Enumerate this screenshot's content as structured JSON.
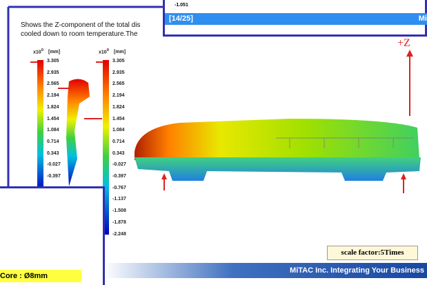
{
  "slide_text": [
    "Shows the Z-component of the total dis",
    "cooled down to room temperature.The"
  ],
  "popup_top": {
    "value": "-1.051",
    "page": "[14/25]",
    "brand": "Mi"
  },
  "legends": [
    {
      "multiplier": "x10",
      "exponent": "0",
      "unit": "[mm]",
      "values": [
        "3.305",
        "2.935",
        "2.565",
        "2.194",
        "1.824",
        "1.454",
        "1.084",
        "0.714",
        "0.343",
        "-0.027",
        "-0.397"
      ]
    },
    {
      "multiplier": "x10",
      "exponent": "0",
      "unit": "[mm]",
      "values": [
        "3.305",
        "2.935",
        "2.565",
        "2.194",
        "1.824",
        "1.454",
        "1.084",
        "0.714",
        "0.343",
        "-0.027",
        "-0.397",
        "-0.767",
        "-1.137",
        "-1.508",
        "-1.878",
        "-2.248"
      ]
    }
  ],
  "axis_label": "+Z",
  "scale_note": "scale factor:5Times",
  "footer": "MiTAC Inc. Integrating Your Business",
  "popup_bottom": {
    "label": "Core : Ø8mm"
  }
}
